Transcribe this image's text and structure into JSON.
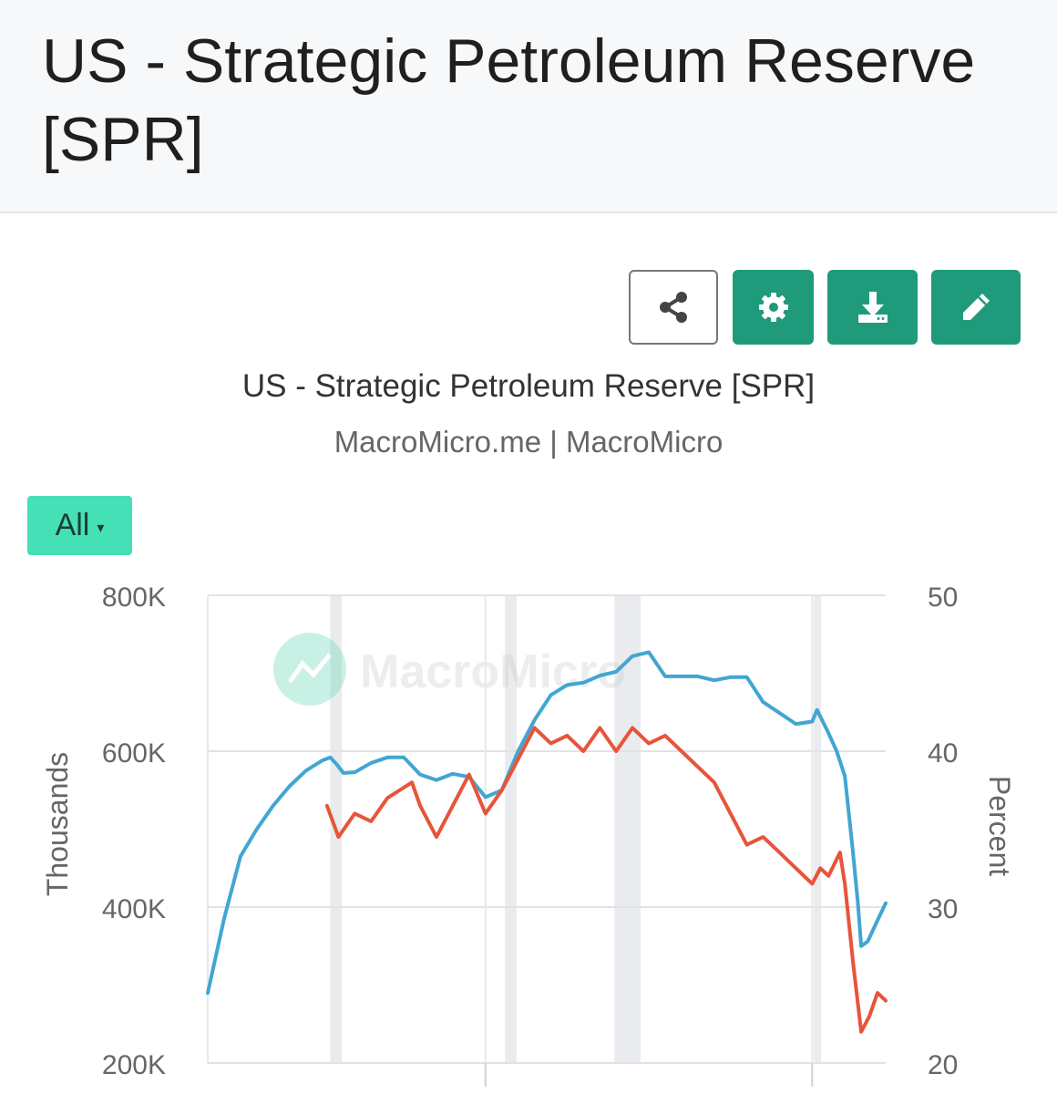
{
  "page": {
    "title": "US - Strategic Petroleum Reserve [SPR]"
  },
  "toolbar": {
    "share_icon": "share-icon",
    "settings_icon": "gear-icon",
    "download_icon": "download-icon",
    "edit_icon": "pencil-icon",
    "accent_color": "#1f9a7a"
  },
  "chart_header": {
    "title": "US - Strategic Petroleum Reserve [SPR]",
    "subtitle": "MacroMicro.me | MacroMicro"
  },
  "range_selector": {
    "label": "All",
    "caret": "▾",
    "color": "#45e0b5"
  },
  "watermark": {
    "text": "MacroMicro"
  },
  "chart_data": {
    "type": "line",
    "grid": true,
    "legend": "none",
    "y_left": {
      "label": "Thousands",
      "range": [
        200000,
        800000
      ],
      "ticks": [
        "800K",
        "600K",
        "400K",
        "200K"
      ]
    },
    "y_right": {
      "label": "Percent",
      "range": [
        20,
        50
      ],
      "ticks": [
        "50",
        "40",
        "30",
        "20"
      ]
    },
    "x_range": [
      1983.0,
      2024.5
    ],
    "x_ticks_shown": false,
    "recession_bands": [
      [
        1990.5,
        1991.2
      ],
      [
        2001.2,
        2001.9
      ],
      [
        2007.9,
        2009.5
      ],
      [
        2020.1,
        2020.4
      ]
    ],
    "series": [
      {
        "axis": "left",
        "color": "#41a6d1",
        "points": [
          [
            1983.0,
            290000
          ],
          [
            1984.0,
            385000
          ],
          [
            1985.0,
            465000
          ],
          [
            1986.0,
            500000
          ],
          [
            1987.0,
            530000
          ],
          [
            1988.0,
            555000
          ],
          [
            1989.0,
            575000
          ],
          [
            1990.0,
            588000
          ],
          [
            1990.5,
            592000
          ],
          [
            1990.9,
            583000
          ],
          [
            1991.3,
            572000
          ],
          [
            1992.0,
            573000
          ],
          [
            1993.0,
            585000
          ],
          [
            1994.0,
            592000
          ],
          [
            1995.0,
            592000
          ],
          [
            1996.0,
            570000
          ],
          [
            1997.0,
            563000
          ],
          [
            1998.0,
            571000
          ],
          [
            1999.0,
            567000
          ],
          [
            2000.0,
            541000
          ],
          [
            2001.0,
            550000
          ],
          [
            2002.0,
            600000
          ],
          [
            2003.0,
            640000
          ],
          [
            2004.0,
            672000
          ],
          [
            2005.0,
            685000
          ],
          [
            2006.0,
            688000
          ],
          [
            2007.0,
            697000
          ],
          [
            2008.0,
            702000
          ],
          [
            2009.0,
            722000
          ],
          [
            2010.0,
            727000
          ],
          [
            2011.0,
            696000
          ],
          [
            2012.0,
            696000
          ],
          [
            2013.0,
            696000
          ],
          [
            2014.0,
            691000
          ],
          [
            2015.0,
            695000
          ],
          [
            2016.0,
            695000
          ],
          [
            2017.0,
            663000
          ],
          [
            2018.0,
            649000
          ],
          [
            2019.0,
            635000
          ],
          [
            2020.0,
            638000
          ],
          [
            2020.3,
            653000
          ],
          [
            2021.0,
            623000
          ],
          [
            2021.5,
            600000
          ],
          [
            2022.0,
            568000
          ],
          [
            2022.5,
            470000
          ],
          [
            2022.8,
            405000
          ],
          [
            2023.0,
            350000
          ],
          [
            2023.4,
            356000
          ],
          [
            2024.0,
            383000
          ],
          [
            2024.5,
            405000
          ]
        ]
      },
      {
        "axis": "right",
        "color": "#e6553a",
        "points": [
          [
            1990.3,
            36.5
          ],
          [
            1991.0,
            34.5
          ],
          [
            1992.0,
            36.0
          ],
          [
            1993.0,
            35.5
          ],
          [
            1994.0,
            37.0
          ],
          [
            1995.5,
            38.0
          ],
          [
            1996.0,
            36.5
          ],
          [
            1997.0,
            34.5
          ],
          [
            1998.0,
            36.5
          ],
          [
            1999.0,
            38.5
          ],
          [
            2000.0,
            36.0
          ],
          [
            2001.0,
            37.5
          ],
          [
            2002.0,
            39.5
          ],
          [
            2003.0,
            41.5
          ],
          [
            2004.0,
            40.5
          ],
          [
            2005.0,
            41.0
          ],
          [
            2006.0,
            40.0
          ],
          [
            2007.0,
            41.5
          ],
          [
            2008.0,
            40.0
          ],
          [
            2009.0,
            41.5
          ],
          [
            2010.0,
            40.5
          ],
          [
            2011.0,
            41.0
          ],
          [
            2012.0,
            40.0
          ],
          [
            2013.0,
            39.0
          ],
          [
            2014.0,
            38.0
          ],
          [
            2015.0,
            36.0
          ],
          [
            2016.0,
            34.0
          ],
          [
            2017.0,
            34.5
          ],
          [
            2018.0,
            33.5
          ],
          [
            2019.0,
            32.5
          ],
          [
            2020.0,
            31.5
          ],
          [
            2020.5,
            32.5
          ],
          [
            2021.0,
            32.0
          ],
          [
            2021.7,
            33.5
          ],
          [
            2022.0,
            31.5
          ],
          [
            2022.5,
            26.5
          ],
          [
            2023.0,
            22.0
          ],
          [
            2023.5,
            23.0
          ],
          [
            2024.0,
            24.5
          ],
          [
            2024.5,
            24.0
          ]
        ]
      }
    ]
  }
}
